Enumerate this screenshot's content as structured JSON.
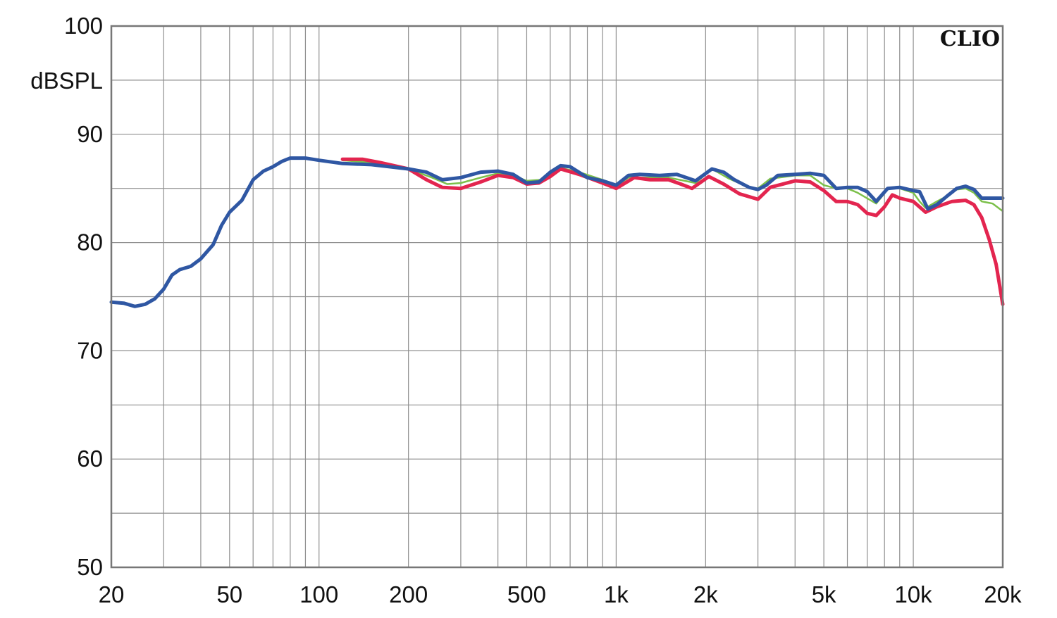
{
  "chart_data": {
    "type": "line",
    "title": "",
    "brand": "CLIO",
    "ylabel": "dBSPL",
    "xlabel": "",
    "xscale": "log",
    "xlim": [
      20,
      20000
    ],
    "ylim": [
      50,
      100
    ],
    "grid": true,
    "colors": {
      "green": "#7cc04a",
      "red": "#e3254f",
      "blue": "#2f57a3",
      "grid": "#8f8f8f",
      "frame": "#777777"
    },
    "y_ticks": [
      {
        "value": 100,
        "label": "100"
      },
      {
        "value": 90,
        "label": "90"
      },
      {
        "value": 80,
        "label": "80"
      },
      {
        "value": 70,
        "label": "70"
      },
      {
        "value": 60,
        "label": "60"
      },
      {
        "value": 50,
        "label": "50"
      }
    ],
    "y_minor": [
      95,
      85,
      75,
      65,
      55
    ],
    "x_ticks": [
      {
        "value": 20,
        "label": "20"
      },
      {
        "value": 50,
        "label": "50"
      },
      {
        "value": 100,
        "label": "100"
      },
      {
        "value": 200,
        "label": "200"
      },
      {
        "value": 500,
        "label": "500"
      },
      {
        "value": 1000,
        "label": "1k"
      },
      {
        "value": 2000,
        "label": "2k"
      },
      {
        "value": 5000,
        "label": "5k"
      },
      {
        "value": 10000,
        "label": "10k"
      },
      {
        "value": 20000,
        "label": "20k"
      }
    ],
    "x_grid": [
      20,
      30,
      40,
      50,
      60,
      70,
      80,
      90,
      100,
      200,
      300,
      400,
      500,
      600,
      700,
      800,
      900,
      1000,
      2000,
      3000,
      4000,
      5000,
      6000,
      7000,
      8000,
      9000,
      10000,
      20000
    ],
    "series": [
      {
        "color_key": "green",
        "width": 2.5,
        "points": [
          [
            120,
            87.6
          ],
          [
            150,
            87.4
          ],
          [
            200,
            86.8
          ],
          [
            240,
            86.0
          ],
          [
            270,
            85.4
          ],
          [
            300,
            85.5
          ],
          [
            350,
            86.0
          ],
          [
            400,
            86.4
          ],
          [
            450,
            86.2
          ],
          [
            500,
            85.7
          ],
          [
            560,
            85.8
          ],
          [
            650,
            86.9
          ],
          [
            750,
            86.5
          ],
          [
            900,
            85.8
          ],
          [
            1000,
            85.2
          ],
          [
            1100,
            86.0
          ],
          [
            1300,
            86.0
          ],
          [
            1500,
            86.0
          ],
          [
            1700,
            85.7
          ],
          [
            1850,
            85.5
          ],
          [
            2100,
            86.8
          ],
          [
            2400,
            85.9
          ],
          [
            2800,
            85.1
          ],
          [
            3000,
            85.0
          ],
          [
            3300,
            85.9
          ],
          [
            4000,
            86.2
          ],
          [
            4500,
            86.2
          ],
          [
            5000,
            85.3
          ],
          [
            5500,
            85.0
          ],
          [
            6000,
            85.0
          ],
          [
            6500,
            84.6
          ],
          [
            7500,
            83.6
          ],
          [
            8300,
            85.1
          ],
          [
            9000,
            85.0
          ],
          [
            10000,
            84.6
          ],
          [
            10500,
            83.8
          ],
          [
            11000,
            83.2
          ],
          [
            12000,
            83.8
          ],
          [
            13000,
            84.3
          ],
          [
            14000,
            84.9
          ],
          [
            15000,
            85.0
          ],
          [
            16000,
            84.6
          ],
          [
            17000,
            83.8
          ],
          [
            18500,
            83.6
          ],
          [
            20000,
            82.9
          ]
        ]
      },
      {
        "color_key": "red",
        "width": 5,
        "points": [
          [
            120,
            87.7
          ],
          [
            140,
            87.7
          ],
          [
            160,
            87.4
          ],
          [
            200,
            86.8
          ],
          [
            230,
            85.8
          ],
          [
            260,
            85.1
          ],
          [
            300,
            85.0
          ],
          [
            350,
            85.6
          ],
          [
            400,
            86.2
          ],
          [
            450,
            86.0
          ],
          [
            500,
            85.4
          ],
          [
            550,
            85.5
          ],
          [
            600,
            86.1
          ],
          [
            650,
            86.8
          ],
          [
            750,
            86.3
          ],
          [
            900,
            85.5
          ],
          [
            1000,
            85.0
          ],
          [
            1150,
            86.0
          ],
          [
            1300,
            85.8
          ],
          [
            1500,
            85.8
          ],
          [
            1650,
            85.4
          ],
          [
            1800,
            85.0
          ],
          [
            2050,
            86.1
          ],
          [
            2300,
            85.4
          ],
          [
            2600,
            84.5
          ],
          [
            3000,
            84.0
          ],
          [
            3300,
            85.1
          ],
          [
            4000,
            85.7
          ],
          [
            4500,
            85.6
          ],
          [
            5000,
            84.8
          ],
          [
            5500,
            83.8
          ],
          [
            6000,
            83.8
          ],
          [
            6500,
            83.5
          ],
          [
            7000,
            82.7
          ],
          [
            7500,
            82.5
          ],
          [
            8000,
            83.3
          ],
          [
            8500,
            84.4
          ],
          [
            9000,
            84.1
          ],
          [
            10000,
            83.8
          ],
          [
            11000,
            82.8
          ],
          [
            12000,
            83.3
          ],
          [
            13500,
            83.8
          ],
          [
            15000,
            83.9
          ],
          [
            16000,
            83.5
          ],
          [
            17000,
            82.3
          ],
          [
            18000,
            80.3
          ],
          [
            19000,
            78.0
          ],
          [
            20000,
            74.3
          ]
        ]
      },
      {
        "color_key": "blue",
        "width": 5,
        "points": [
          [
            20,
            74.5
          ],
          [
            22,
            74.4
          ],
          [
            24,
            74.1
          ],
          [
            26,
            74.3
          ],
          [
            28,
            74.8
          ],
          [
            30,
            75.7
          ],
          [
            32,
            77.0
          ],
          [
            34,
            77.5
          ],
          [
            37,
            77.8
          ],
          [
            40,
            78.5
          ],
          [
            44,
            79.8
          ],
          [
            47,
            81.6
          ],
          [
            50,
            82.8
          ],
          [
            55,
            83.9
          ],
          [
            60,
            85.8
          ],
          [
            65,
            86.6
          ],
          [
            70,
            87.0
          ],
          [
            75,
            87.5
          ],
          [
            80,
            87.8
          ],
          [
            90,
            87.8
          ],
          [
            100,
            87.6
          ],
          [
            120,
            87.3
          ],
          [
            150,
            87.2
          ],
          [
            200,
            86.8
          ],
          [
            230,
            86.5
          ],
          [
            260,
            85.8
          ],
          [
            300,
            86.0
          ],
          [
            350,
            86.5
          ],
          [
            400,
            86.6
          ],
          [
            450,
            86.3
          ],
          [
            500,
            85.5
          ],
          [
            550,
            85.6
          ],
          [
            600,
            86.5
          ],
          [
            650,
            87.1
          ],
          [
            700,
            87.0
          ],
          [
            800,
            86.0
          ],
          [
            900,
            85.7
          ],
          [
            1000,
            85.3
          ],
          [
            1100,
            86.2
          ],
          [
            1200,
            86.3
          ],
          [
            1400,
            86.2
          ],
          [
            1600,
            86.3
          ],
          [
            1850,
            85.7
          ],
          [
            2100,
            86.8
          ],
          [
            2300,
            86.5
          ],
          [
            2500,
            85.8
          ],
          [
            2800,
            85.1
          ],
          [
            3000,
            84.9
          ],
          [
            3200,
            85.3
          ],
          [
            3500,
            86.2
          ],
          [
            4000,
            86.3
          ],
          [
            4500,
            86.4
          ],
          [
            5000,
            86.2
          ],
          [
            5500,
            85.0
          ],
          [
            6000,
            85.1
          ],
          [
            6500,
            85.1
          ],
          [
            7000,
            84.7
          ],
          [
            7500,
            83.8
          ],
          [
            8200,
            85.0
          ],
          [
            9000,
            85.1
          ],
          [
            10000,
            84.8
          ],
          [
            10500,
            84.7
          ],
          [
            11200,
            83.1
          ],
          [
            12000,
            83.5
          ],
          [
            13000,
            84.3
          ],
          [
            14000,
            85.0
          ],
          [
            15000,
            85.2
          ],
          [
            16000,
            84.9
          ],
          [
            17000,
            84.1
          ],
          [
            18500,
            84.1
          ],
          [
            20000,
            84.1
          ]
        ]
      }
    ]
  }
}
